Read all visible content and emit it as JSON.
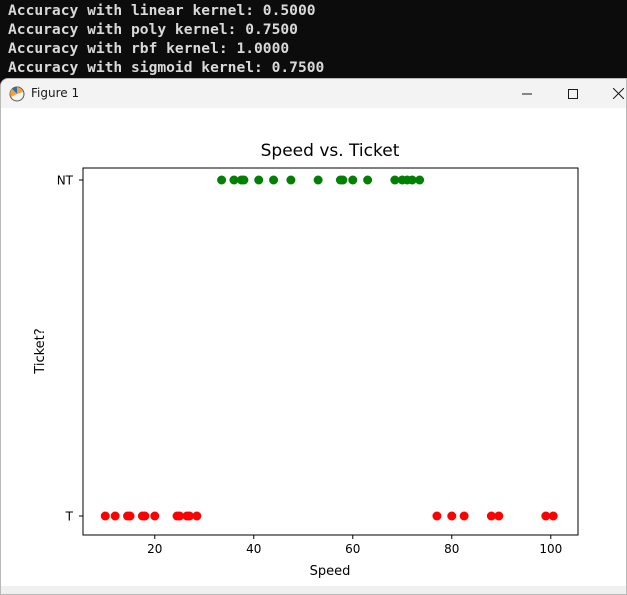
{
  "console": {
    "lines": [
      "Accuracy with linear kernel: 0.5000",
      "Accuracy with poly kernel: 0.7500",
      "Accuracy with rbf kernel: 1.0000",
      "Accuracy with sigmoid kernel: 0.7500"
    ]
  },
  "window": {
    "title": "Figure 1",
    "minimize_icon": "minimize-icon",
    "maximize_icon": "maximize-icon",
    "close_icon": "close-icon"
  },
  "chart_data": {
    "type": "scatter",
    "title": "Speed vs. Ticket",
    "xlabel": "Speed",
    "ylabel": "Ticket?",
    "xlim": [
      5.5,
      105.5
    ],
    "xticks": [
      20,
      40,
      60,
      80,
      100
    ],
    "yticks": [
      "T",
      "NT"
    ],
    "grid": false,
    "series": [
      {
        "category": "T",
        "color": "#ff0000",
        "x": [
          10,
          12,
          14.5,
          15,
          17.5,
          18,
          20,
          24.5,
          25,
          26.5,
          27,
          28.5,
          77,
          80,
          82.5,
          88,
          89.5,
          99,
          100.5
        ]
      },
      {
        "category": "NT",
        "color": "#008000",
        "x": [
          33.5,
          36,
          37.5,
          38,
          41,
          44,
          47.5,
          53,
          57.5,
          58,
          60,
          63,
          68.5,
          70,
          71,
          72,
          73.5
        ]
      }
    ]
  }
}
